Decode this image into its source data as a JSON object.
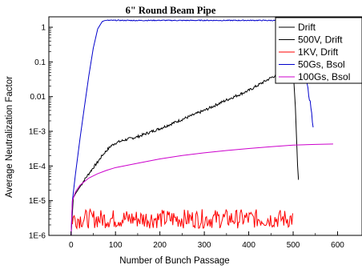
{
  "chart_data": {
    "type": "line",
    "title": "6\" Round Beam Pipe",
    "xlabel": "Number of Bunch Passage",
    "ylabel": "Average Neutralization Factor",
    "xlim": [
      -50,
      655
    ],
    "ylim": [
      1e-06,
      2
    ],
    "yscale": "log",
    "grid": false,
    "legend_position": "top-right",
    "x_ticks": [
      0,
      100,
      200,
      300,
      400,
      500,
      600
    ],
    "x_tick_labels": [
      "0",
      "100",
      "200",
      "300",
      "400",
      "500",
      "600"
    ],
    "y_ticks": [
      1e-06,
      1e-05,
      0.0001,
      0.001,
      0.01,
      0.1,
      1
    ],
    "y_tick_labels": [
      "1E-6",
      "1E-5",
      "1E-4",
      "1E-3",
      "0.01",
      "0.1",
      "1"
    ],
    "series": [
      {
        "name": "Drift",
        "color": "#000000",
        "x": [
          0,
          1,
          2,
          3,
          4,
          5,
          6,
          7,
          8,
          9,
          10
        ],
        "y": [
          1e-06,
          1e-06,
          1e-06,
          1e-06,
          1e-06,
          1e-06,
          1e-06,
          1e-06,
          1e-06,
          1e-06,
          1e-06
        ]
      },
      {
        "name": "500V, Drift",
        "color": "#000000",
        "x": [
          0,
          5,
          10,
          20,
          30,
          40,
          50,
          60,
          70,
          80,
          90,
          100,
          120,
          150,
          200,
          250,
          300,
          350,
          400,
          450,
          480,
          495,
          500,
          505,
          510,
          512
        ],
        "y": [
          1e-06,
          1.2e-05,
          1.6e-05,
          2.5e-05,
          4e-05,
          6e-05,
          9e-05,
          0.00013,
          0.0002,
          0.00028,
          0.00038,
          0.00046,
          0.00056,
          0.0007,
          0.0012,
          0.0022,
          0.004,
          0.008,
          0.015,
          0.035,
          0.055,
          0.065,
          0.06,
          0.005,
          0.0001,
          4e-05
        ]
      },
      {
        "name": "1KV, Drift",
        "color": "#ff0000",
        "x": [
          3,
          500
        ],
        "y": [
          3e-06,
          3e-06
        ]
      },
      {
        "name": "50Gs, Bsol",
        "color": "#0000cc",
        "x": [
          0,
          3,
          10,
          20,
          30,
          40,
          50,
          60,
          70,
          75,
          80,
          100,
          150,
          200,
          250,
          300,
          350,
          400,
          450,
          500,
          505,
          510,
          515,
          520,
          525,
          530,
          535,
          540,
          545
        ],
        "y": [
          1e-06,
          1e-05,
          6e-05,
          0.0006,
          0.005,
          0.04,
          0.25,
          0.9,
          1.45,
          1.55,
          1.58,
          1.58,
          1.57,
          1.58,
          1.57,
          1.58,
          1.57,
          1.58,
          1.57,
          1.55,
          1.0,
          0.3,
          0.15,
          0.09,
          0.05,
          0.03,
          0.012,
          0.005,
          0.0013
        ]
      },
      {
        "name": "100Gs, Bsol",
        "color": "#cc00cc",
        "x": [
          0,
          3,
          10,
          20,
          40,
          60,
          80,
          100,
          150,
          200,
          250,
          300,
          350,
          400,
          450,
          500,
          550,
          590
        ],
        "y": [
          1e-06,
          1e-05,
          1.8e-05,
          2.8e-05,
          4.5e-05,
          6e-05,
          7.5e-05,
          9e-05,
          0.00012,
          0.00016,
          0.0002,
          0.00024,
          0.00028,
          0.00032,
          0.00036,
          0.0004,
          0.00042,
          0.00043
        ]
      }
    ]
  }
}
